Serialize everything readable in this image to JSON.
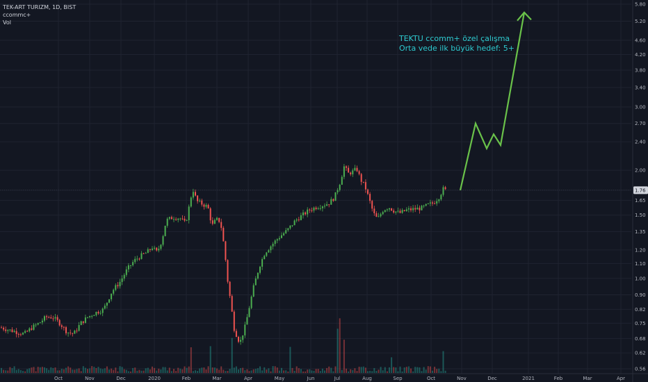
{
  "legend": {
    "symbol_line": "TEK-ART TURIZM, 1D, BIST",
    "indicator": "ccommc+",
    "volume": "Vol"
  },
  "annotation": {
    "line1": "TEKTU ccomm+ özel çalışma",
    "line2": "Orta vede ilk büyük hedef: 5+"
  },
  "colors": {
    "background": "#131722",
    "grid": "#1f2330",
    "up": "#26a69a",
    "up_candle": "#4caf50",
    "down": "#ef5350",
    "projection": "#6ac24a",
    "annotation": "#2ecbd0",
    "price_badge": "#d1d4dc"
  },
  "chart_data": {
    "type": "candlestick",
    "scale": "log",
    "current_price_label": "1.76",
    "y_ticks": [
      "5.80",
      "5.20",
      "4.60",
      "4.20",
      "3.80",
      "3.40",
      "3.00",
      "2.70",
      "2.40",
      "2.00",
      "1.76",
      "1.65",
      "1.50",
      "1.35",
      "1.20",
      "1.10",
      "1.00",
      "0.90",
      "0.82",
      "0.75",
      "0.68",
      "0.62",
      "0.56"
    ],
    "y_tick_values": [
      5.8,
      5.2,
      4.6,
      4.2,
      3.8,
      3.4,
      3.0,
      2.7,
      2.4,
      2.0,
      1.76,
      1.65,
      1.5,
      1.35,
      1.2,
      1.1,
      1.0,
      0.9,
      0.82,
      0.75,
      0.68,
      0.62,
      0.56
    ],
    "x_ticks": [
      "Oct",
      "Nov",
      "Dec",
      "2020",
      "Feb",
      "Mar",
      "Apr",
      "May",
      "Jun",
      "Jul",
      "Aug",
      "Sep",
      "Oct",
      "Nov",
      "Dec",
      "2021",
      "Feb",
      "Mar",
      "Apr"
    ],
    "price_path": [
      [
        0,
        0.73
      ],
      [
        10,
        0.72
      ],
      [
        22,
        0.71
      ],
      [
        34,
        0.7
      ],
      [
        45,
        0.73
      ],
      [
        55,
        0.75
      ],
      [
        65,
        0.78
      ],
      [
        75,
        0.78
      ],
      [
        85,
        0.75
      ],
      [
        95,
        0.71
      ],
      [
        105,
        0.7
      ],
      [
        115,
        0.75
      ],
      [
        125,
        0.78
      ],
      [
        135,
        0.8
      ],
      [
        148,
        0.82
      ],
      [
        160,
        0.92
      ],
      [
        172,
        0.98
      ],
      [
        182,
        1.06
      ],
      [
        192,
        1.12
      ],
      [
        200,
        1.15
      ],
      [
        210,
        1.18
      ],
      [
        218,
        1.22
      ],
      [
        225,
        1.18
      ],
      [
        232,
        1.28
      ],
      [
        238,
        1.45
      ],
      [
        248,
        1.48
      ],
      [
        258,
        1.47
      ],
      [
        266,
        1.42
      ],
      [
        272,
        1.62
      ],
      [
        276,
        1.78
      ],
      [
        282,
        1.64
      ],
      [
        290,
        1.61
      ],
      [
        298,
        1.58
      ],
      [
        304,
        1.4
      ],
      [
        310,
        1.46
      ],
      [
        316,
        1.44
      ],
      [
        322,
        1.2
      ],
      [
        326,
        1.0
      ],
      [
        330,
        0.88
      ],
      [
        336,
        0.72
      ],
      [
        344,
        0.66
      ],
      [
        352,
        0.74
      ],
      [
        358,
        0.84
      ],
      [
        364,
        0.95
      ],
      [
        372,
        1.08
      ],
      [
        380,
        1.18
      ],
      [
        390,
        1.24
      ],
      [
        400,
        1.3
      ],
      [
        412,
        1.36
      ],
      [
        424,
        1.45
      ],
      [
        434,
        1.5
      ],
      [
        444,
        1.55
      ],
      [
        454,
        1.58
      ],
      [
        464,
        1.6
      ],
      [
        472,
        1.62
      ],
      [
        480,
        1.68
      ],
      [
        488,
        1.85
      ],
      [
        494,
        2.05
      ],
      [
        500,
        1.96
      ],
      [
        506,
        1.98
      ],
      [
        512,
        2.02
      ],
      [
        518,
        1.88
      ],
      [
        524,
        1.8
      ],
      [
        530,
        1.66
      ],
      [
        536,
        1.52
      ],
      [
        542,
        1.46
      ],
      [
        550,
        1.55
      ],
      [
        558,
        1.58
      ],
      [
        566,
        1.54
      ],
      [
        574,
        1.52
      ],
      [
        584,
        1.55
      ],
      [
        596,
        1.56
      ],
      [
        606,
        1.57
      ],
      [
        614,
        1.6
      ],
      [
        622,
        1.62
      ],
      [
        630,
        1.68
      ],
      [
        637,
        1.78
      ],
      [
        642,
        1.74
      ]
    ],
    "volume_spikes": [
      [
        273,
        60
      ],
      [
        301,
        40
      ],
      [
        332,
        70
      ],
      [
        417,
        40
      ],
      [
        486,
        80
      ],
      [
        494,
        60
      ],
      [
        563,
        35
      ],
      [
        637,
        40
      ]
    ],
    "projection_path": [
      [
        662,
        1.76
      ],
      [
        684,
        2.7
      ],
      [
        700,
        2.3
      ],
      [
        710,
        2.52
      ],
      [
        720,
        2.35
      ],
      [
        754,
        5.5
      ]
    ],
    "projection_arrow_head": [
      [
        744,
        5.22
      ],
      [
        754,
        5.5
      ],
      [
        764,
        5.25
      ]
    ]
  }
}
